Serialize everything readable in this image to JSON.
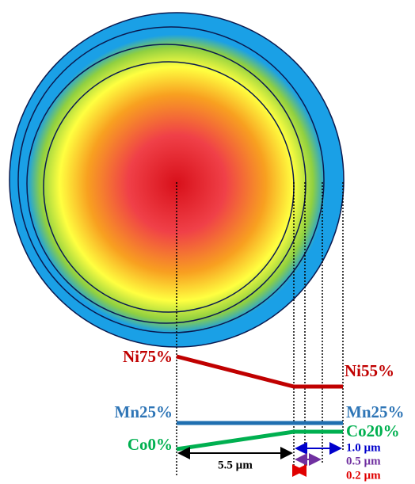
{
  "labels": {
    "ni_core": "Ni75%",
    "ni_shell": "Ni55%",
    "mn_core": "Mn25%",
    "mn_shell": "Mn25%",
    "co_core": "Co0%",
    "co_shell": "Co20%"
  },
  "dimensions": {
    "core": "5.5 µm",
    "shell_total": "1.0 µm",
    "shell_mid": "0.5 µm",
    "shell_inner": "0.2 µm"
  }
}
